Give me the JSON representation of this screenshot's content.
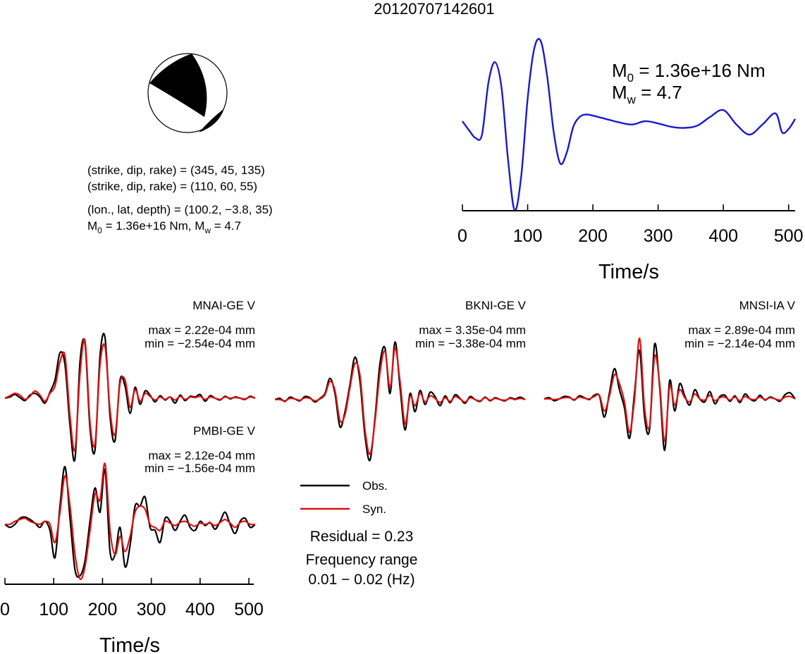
{
  "title": "20120707142601",
  "beachball": {
    "fill": "#000000",
    "background": "#ffffff"
  },
  "info": {
    "nodal1": "(strike, dip, rake) = (345, 45, 135)",
    "nodal2": "(strike, dip, rake) = (110, 60, 55)",
    "location": "(lon., lat, depth) = (100.2, −3.8, 35)",
    "moment_prefix": "M",
    "moment_sub": "0",
    "moment_value": " = 1.36e+16 Nm, M",
    "magnitude_sub": "w",
    "magnitude_value": " = 4.7"
  },
  "stf_labels": {
    "m0_prefix": "M",
    "m0_sub": "0",
    "m0_value": " = 1.36e+16 Nm",
    "mw_prefix": "M",
    "mw_sub": "w",
    "mw_value": " = 4.7"
  },
  "legend": {
    "obs_label": "Obs.",
    "syn_label": "Syn.",
    "residual": "Residual = 0.23",
    "freq_title": "Frequency range",
    "freq_value": "0.01 − 0.02 (Hz)"
  },
  "colors": {
    "obs": "#000000",
    "syn": "#dd1111",
    "stf": "#1a1acc"
  },
  "chart_data": [
    {
      "type": "line",
      "name": "source time function",
      "xlabel": "Time/s",
      "xlim": [
        0,
        510
      ],
      "xticks": [
        "0",
        "100",
        "200",
        "300",
        "400",
        "500"
      ],
      "series": [
        {
          "color": "#1a1acc",
          "x": [
            0,
            10,
            20,
            30,
            40,
            50,
            60,
            70,
            80,
            90,
            100,
            110,
            120,
            130,
            140,
            150,
            160,
            170,
            180,
            190,
            200,
            220,
            240,
            260,
            280,
            300,
            320,
            340,
            360,
            380,
            400,
            420,
            440,
            460,
            480,
            490,
            500,
            510
          ],
          "y": [
            0.0,
            -0.08,
            -0.15,
            -0.12,
            0.35,
            0.53,
            0.3,
            -0.35,
            -0.8,
            -0.5,
            0.2,
            0.65,
            0.72,
            0.4,
            -0.1,
            -0.38,
            -0.28,
            -0.05,
            0.04,
            0.06,
            0.05,
            0.02,
            -0.01,
            -0.03,
            0.0,
            -0.02,
            -0.05,
            -0.06,
            -0.04,
            0.04,
            0.1,
            -0.03,
            -0.12,
            -0.03,
            0.07,
            -0.1,
            -0.07,
            0.02
          ]
        }
      ]
    },
    {
      "type": "line",
      "station": "MNAI-GE V",
      "max": "max = 2.22e-04 mm",
      "min": "min = −2.54e-04 mm",
      "series": [
        {
          "name": "Obs.",
          "color": "#000000",
          "y": [
            0,
            0.02,
            0.06,
            0.01,
            -0.04,
            0.05,
            0.08,
            0.02,
            -0.08,
            0.1,
            0.3,
            0.75,
            0.55,
            -0.45,
            -1.0,
            0.6,
            0.9,
            -0.5,
            -0.85,
            0.7,
            1.0,
            -0.3,
            -0.7,
            0.3,
            0.2,
            -0.25,
            0.18,
            -0.1,
            0.12,
            0.05,
            -0.06,
            0.04,
            -0.03,
            0.02,
            -0.08,
            0.05,
            -0.04,
            0.03,
            0.02,
            0.06,
            -0.05,
            0.04,
            0.0,
            -0.03,
            0.03,
            -0.01,
            0.02,
            0.0,
            -0.02,
            0.03,
            0.0
          ]
        },
        {
          "name": "Syn.",
          "color": "#dd1111",
          "y": [
            0,
            0.04,
            0.08,
            0.05,
            -0.02,
            0.03,
            0.12,
            0.05,
            -0.05,
            0.08,
            0.2,
            0.6,
            0.7,
            -0.3,
            -0.85,
            0.4,
            0.95,
            -0.4,
            -0.75,
            0.55,
            0.85,
            -0.2,
            -0.6,
            0.25,
            0.3,
            -0.15,
            0.14,
            -0.05,
            0.08,
            0.03,
            -0.03,
            0.02,
            -0.02,
            0.02,
            -0.03,
            0.03,
            -0.02,
            0.02,
            0.01,
            0.03,
            -0.02,
            0.02,
            0.0,
            -0.02,
            0.02,
            0.0,
            0.01,
            0.0,
            -0.01,
            0.02,
            0.0
          ]
        }
      ]
    },
    {
      "type": "line",
      "station": "BKNI-GE V",
      "max": "max = 3.35e-04 mm",
      "min": "min = −3.38e-04 mm",
      "series": [
        {
          "name": "Obs.",
          "color": "#000000",
          "y": [
            0,
            0.02,
            -0.03,
            0.04,
            0.01,
            -0.02,
            0.05,
            0.03,
            -0.04,
            0.02,
            0.1,
            0.35,
            0.1,
            -0.45,
            -0.2,
            0.25,
            0.7,
            0.3,
            -0.6,
            -1.0,
            -0.3,
            0.6,
            0.85,
            0.1,
            0.95,
            0.2,
            -0.5,
            0.1,
            -0.2,
            0.15,
            -0.08,
            0.12,
            0.05,
            -0.1,
            0.06,
            -0.05,
            0.08,
            0.02,
            -0.06,
            0.05,
            0.0,
            -0.03,
            0.04,
            -0.02,
            0.03,
            0.0,
            -0.02,
            0.03,
            0.01,
            0.04,
            0.0
          ]
        },
        {
          "name": "Syn.",
          "color": "#dd1111",
          "y": [
            0,
            0.0,
            -0.02,
            0.02,
            0.01,
            -0.01,
            0.03,
            0.02,
            -0.02,
            0.01,
            0.08,
            0.3,
            0.15,
            -0.35,
            -0.25,
            0.2,
            0.6,
            0.4,
            -0.5,
            -0.9,
            -0.35,
            0.45,
            0.8,
            0.2,
            0.85,
            0.3,
            -0.4,
            0.05,
            -0.1,
            0.1,
            -0.04,
            0.06,
            0.02,
            -0.05,
            0.03,
            -0.03,
            0.05,
            0.01,
            -0.04,
            0.03,
            0.0,
            -0.02,
            0.03,
            -0.01,
            0.02,
            0.0,
            -0.01,
            0.02,
            0.0,
            0.02,
            0.0
          ]
        }
      ]
    },
    {
      "type": "line",
      "station": "MNSI-IA V",
      "max": "max = 2.89e-04 mm",
      "min": "min = −2.14e-04 mm",
      "series": [
        {
          "name": "Obs.",
          "color": "#000000",
          "y": [
            0,
            0.02,
            -0.03,
            0.0,
            0.04,
            0.03,
            -0.02,
            0.05,
            0.02,
            -0.01,
            0.06,
            0.05,
            -0.3,
            0.1,
            0.5,
            0.15,
            -0.15,
            -0.65,
            0.1,
            0.8,
            -0.3,
            -0.5,
            0.9,
            0.2,
            -0.85,
            0.3,
            -0.2,
            0.25,
            0.05,
            -0.1,
            0.15,
            0.0,
            -0.05,
            0.12,
            -0.08,
            0.04,
            0.06,
            -0.04,
            0.05,
            -0.06,
            0.08,
            0.0,
            -0.03,
            0.06,
            -0.02,
            0.03,
            0.0,
            -0.04,
            0.07,
            0.1,
            0.0
          ]
        },
        {
          "name": "Syn.",
          "color": "#dd1111",
          "y": [
            0,
            0.0,
            -0.01,
            0.0,
            0.02,
            0.02,
            -0.01,
            0.03,
            0.01,
            0.0,
            0.04,
            0.06,
            -0.2,
            0.05,
            0.4,
            0.25,
            -0.05,
            -0.55,
            0.0,
            1.0,
            -0.15,
            -0.45,
            0.7,
            0.25,
            -0.7,
            0.2,
            -0.1,
            0.15,
            0.02,
            -0.05,
            0.08,
            0.0,
            -0.02,
            0.06,
            -0.03,
            0.02,
            0.03,
            -0.02,
            0.03,
            -0.03,
            0.04,
            0.0,
            -0.01,
            0.03,
            -0.01,
            0.02,
            0.0,
            -0.02,
            0.03,
            0.04,
            0.0
          ]
        }
      ]
    },
    {
      "type": "line",
      "station": "PMBI-GE V",
      "max": "max = 2.12e-04 mm",
      "min": "min = −1.56e-04 mm",
      "xlabel": "Time/s",
      "xlim": [
        0,
        510
      ],
      "xticks": [
        "0",
        "100",
        "200",
        "300",
        "400",
        "500"
      ],
      "series": [
        {
          "name": "Obs.",
          "color": "#000000",
          "y": [
            0,
            -0.05,
            0.0,
            0.1,
            0.12,
            0.08,
            0.02,
            -0.05,
            0.05,
            -0.1,
            -0.55,
            0.3,
            0.95,
            0.1,
            -0.75,
            -0.85,
            -0.6,
            0.05,
            0.6,
            0.2,
            0.9,
            -0.45,
            -0.5,
            -0.05,
            -0.7,
            -0.35,
            0.3,
            0.3,
            0.45,
            -0.05,
            -0.1,
            -0.3,
            0.1,
            0.05,
            -0.1,
            0.05,
            0.15,
            -0.05,
            -0.1,
            0.05,
            -0.02,
            0.03,
            -0.08,
            0.05,
            0.2,
            0.0,
            -0.15,
            0.05,
            0.1,
            -0.05,
            0.0
          ]
        },
        {
          "name": "Syn.",
          "color": "#dd1111",
          "y": [
            0,
            0.0,
            0.05,
            0.08,
            0.1,
            0.05,
            0.02,
            0.0,
            0.05,
            0.0,
            -0.3,
            0.2,
            0.8,
            0.3,
            -0.5,
            -0.9,
            -0.7,
            -0.1,
            0.5,
            0.4,
            1.0,
            -0.1,
            -0.5,
            -0.2,
            -0.45,
            -0.2,
            0.2,
            0.3,
            0.25,
            0.0,
            -0.05,
            -0.1,
            0.05,
            0.02,
            -0.02,
            0.03,
            0.05,
            0.0,
            -0.03,
            0.02,
            0.0,
            0.02,
            -0.02,
            0.03,
            0.08,
            0.02,
            -0.05,
            0.03,
            0.05,
            0.0,
            0.0
          ]
        }
      ]
    }
  ]
}
